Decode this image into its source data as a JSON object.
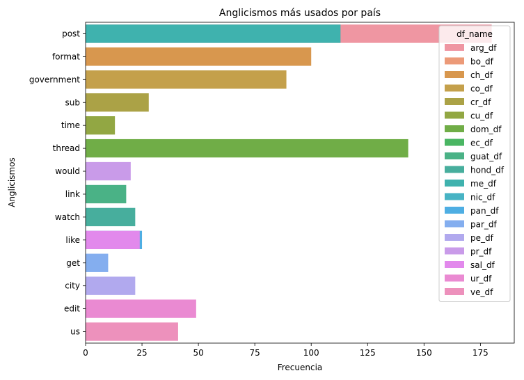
{
  "chart_data": {
    "type": "bar",
    "orientation": "horizontal",
    "title": "Anglicismos más usados por país",
    "xlabel": "Frecuencia",
    "ylabel": "Anglicismos",
    "xlim": [
      0,
      190
    ],
    "xticks": [
      0,
      25,
      50,
      75,
      100,
      125,
      150,
      175
    ],
    "categories": [
      "post",
      "format",
      "government",
      "sub",
      "time",
      "thread",
      "would",
      "link",
      "watch",
      "like",
      "get",
      "city",
      "edit",
      "us"
    ],
    "bars": [
      {
        "category": "post",
        "series": "arg_df",
        "value": 180
      },
      {
        "category": "post",
        "series": "me_df",
        "value": 113
      },
      {
        "category": "format",
        "series": "ch_df",
        "value": 100
      },
      {
        "category": "government",
        "series": "co_df",
        "value": 89
      },
      {
        "category": "sub",
        "series": "cr_df",
        "value": 28
      },
      {
        "category": "time",
        "series": "cu_df",
        "value": 13
      },
      {
        "category": "thread",
        "series": "dom_df",
        "value": 143
      },
      {
        "category": "would",
        "series": "pr_df",
        "value": 20
      },
      {
        "category": "link",
        "series": "guat_df",
        "value": 18
      },
      {
        "category": "watch",
        "series": "hond_df",
        "value": 22
      },
      {
        "category": "like",
        "series": "pan_df",
        "value": 25
      },
      {
        "category": "like",
        "series": "sal_df",
        "value": 24
      },
      {
        "category": "get",
        "series": "par_df",
        "value": 10
      },
      {
        "category": "city",
        "series": "pe_df",
        "value": 22
      },
      {
        "category": "edit",
        "series": "ur_df",
        "value": 49
      },
      {
        "category": "us",
        "series": "ve_df",
        "value": 41
      }
    ],
    "legend": {
      "title": "df_name",
      "placement": "top-right",
      "entries": [
        {
          "name": "arg_df",
          "color": "#ef96a2"
        },
        {
          "name": "bo_df",
          "color": "#ec9a78"
        },
        {
          "name": "ch_df",
          "color": "#d8974e"
        },
        {
          "name": "co_df",
          "color": "#c4a04b"
        },
        {
          "name": "cr_df",
          "color": "#aba246"
        },
        {
          "name": "cu_df",
          "color": "#92a743"
        },
        {
          "name": "dom_df",
          "color": "#70ad47"
        },
        {
          "name": "ec_df",
          "color": "#4ab663"
        },
        {
          "name": "guat_df",
          "color": "#4ab286"
        },
        {
          "name": "hond_df",
          "color": "#47ae9d"
        },
        {
          "name": "me_df",
          "color": "#3fb2ae"
        },
        {
          "name": "nic_df",
          "color": "#47b3c4"
        },
        {
          "name": "pan_df",
          "color": "#4eaee3"
        },
        {
          "name": "par_df",
          "color": "#84aeef"
        },
        {
          "name": "pe_df",
          "color": "#b1a9ee"
        },
        {
          "name": "pr_df",
          "color": "#c99be9"
        },
        {
          "name": "sal_df",
          "color": "#e289ec"
        },
        {
          "name": "ur_df",
          "color": "#ea8ad2"
        },
        {
          "name": "ve_df",
          "color": "#ed91bc"
        }
      ]
    },
    "grid": false
  }
}
